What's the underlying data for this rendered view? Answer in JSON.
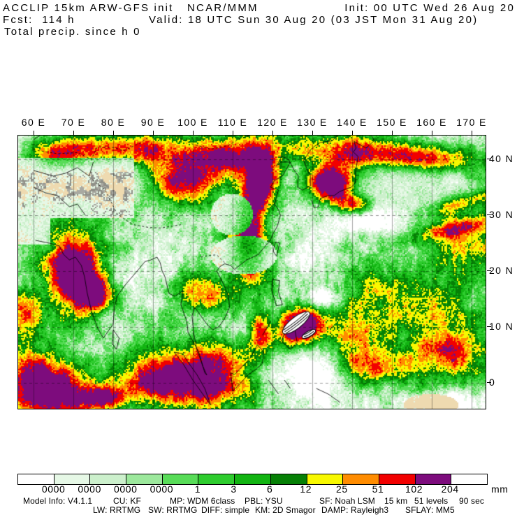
{
  "header": {
    "title": "ACCLIP 15km ARW-GFS init",
    "org": "NCAR/MMM",
    "init": "Init: 00 UTC Wed 26 Aug 20",
    "fcst": "Fcst:  114 h",
    "valid": "Valid: 18 UTC Sun 30 Aug 20 (03 JST Mon 31 Aug 20)",
    "field": "Total precip. since h 0"
  },
  "map": {
    "lon_labels": [
      "60 E",
      "70 E",
      "80 E",
      "90 E",
      "100 E",
      "110 E",
      "120 E",
      "130 E",
      "140 E",
      "150 E",
      "160 E",
      "170 E"
    ],
    "lat_labels": [
      "40 N",
      "30 N",
      "20 N",
      "10 N",
      "0"
    ],
    "land_color": "#eedab0",
    "mountain_color": "#a9a9a1",
    "mountain_color2": "#8f8f87",
    "coast_color": "#000000"
  },
  "legend": {
    "labels": [
      "0000",
      "0000",
      "0000",
      "0000",
      "1",
      "3",
      "6",
      "12",
      "25",
      "51",
      "102",
      "204"
    ],
    "unit": "mm",
    "colors": [
      "#ffffff",
      "#e6f8e6",
      "#ccf0cc",
      "#9ce89c",
      "#58dc58",
      "#2ecc2e",
      "#12b412",
      "#068006",
      "#f8f800",
      "#ff8c00",
      "#f20000",
      "#7d0c7d",
      "#ffffff"
    ]
  },
  "footer": {
    "line1": [
      "Model Info: V4.1.1",
      "CU: KF",
      "MP: WDM 6class",
      "PBL: YSU",
      "SF: Noah LSM",
      "15 km",
      "51 levels",
      "90 sec"
    ],
    "line2": [
      "LW: RRTMG",
      "SW: RRTMG",
      "DIFF: simple",
      "KM: 2D Smagor",
      "DAMP: Rayleigh3",
      "SFLAY: MM5"
    ]
  }
}
